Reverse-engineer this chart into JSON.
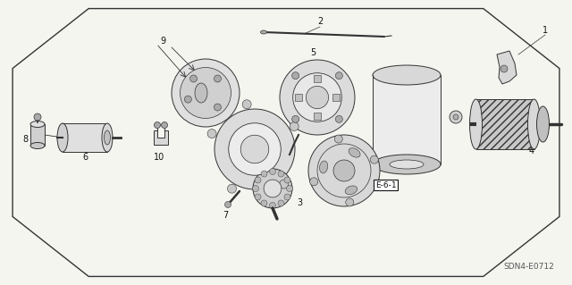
{
  "background_color": "#f5f5f0",
  "border_color": "#333333",
  "diagram_code": "SDN4-E0712",
  "label_code": "E-6-1",
  "octagon_points_x": [
    0.155,
    0.845,
    0.978,
    0.978,
    0.845,
    0.155,
    0.022,
    0.022,
    0.155
  ],
  "octagon_points_y": [
    0.97,
    0.97,
    0.76,
    0.24,
    0.03,
    0.03,
    0.24,
    0.76,
    0.97
  ],
  "gray_light": "#d8d8d8",
  "gray_mid": "#aaaaaa",
  "gray_dark": "#555555",
  "gray_stroke": "#333333",
  "label_fontsize": 7,
  "diagram_code_fontsize": 6.5
}
